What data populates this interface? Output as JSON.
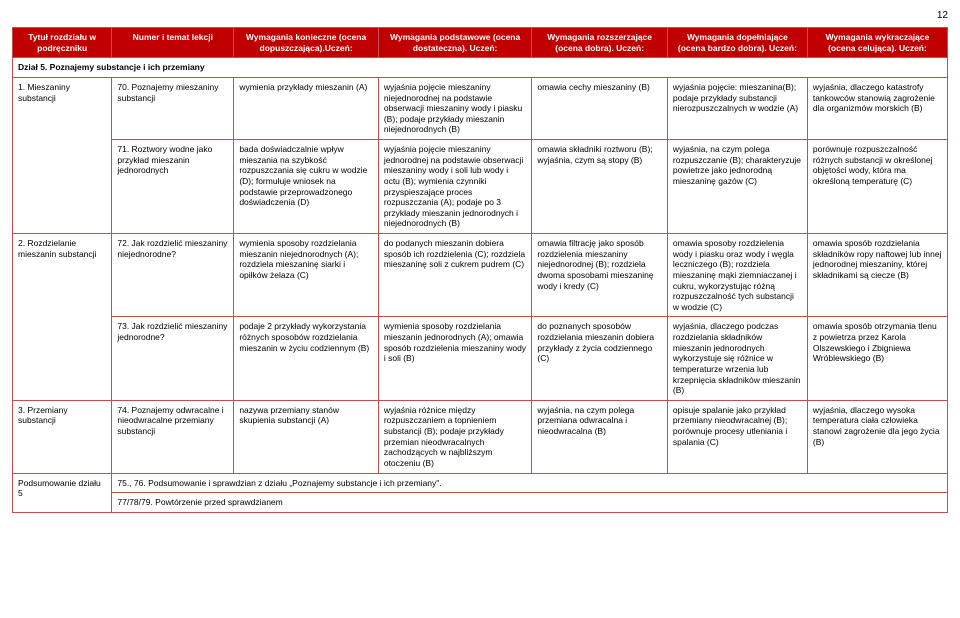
{
  "page_number": "12",
  "headers": [
    "Tytuł rozdziału w podręczniku",
    "Numer i temat lekcji",
    "Wymagania konieczne (ocena dopuszczająca).Uczeń:",
    "Wymagania podstawowe (ocena dostateczna). Uczeń:",
    "Wymagania rozszerzające (ocena dobra). Uczeń:",
    "Wymagania dopełniające (ocena bardzo dobra). Uczeń:",
    "Wymagania wykraczające (ocena celująca). Uczeń:"
  ],
  "section_title": "Dział 5. Poznajemy substancje i ich przemiany",
  "rows": [
    {
      "topic": "1. Mieszaniny substancji",
      "lesson": "70. Poznajemy mieszaniny substancji",
      "c2": "wymienia przykłady mieszanin (A)",
      "c3": "wyjaśnia pojęcie mieszaniny niejednorodnej na podstawie obserwacji mieszaniny wody i piasku (B); podaje przykłady mieszanin niejednorodnych (B)",
      "c4": "omawia cechy mieszaniny (B)",
      "c5": "wyjaśnia pojęcie: mieszanina(B); podaje przykłady substancji nierozpuszczalnych w wodzie (A)",
      "c6": "wyjaśnia, dlaczego katastrofy tankowców stanowią zagrożenie dla organizmów morskich (B)"
    },
    {
      "topic": "",
      "lesson": "71. Roztwory wodne jako przykład mieszanin jednorodnych",
      "c2": "bada doświadczalnie wpływ mieszania na szybkość rozpuszczania się cukru w wodzie (D); formułuje wniosek na podstawie przeprowadzonego doświadczenia (D)",
      "c3": "wyjaśnia pojęcie mieszaniny jednorodnej na podstawie obserwacji mieszaniny wody i soli lub wody i octu (B); wymienia czynniki przyspieszające proces rozpuszczania (A); podaje po 3 przykłady mieszanin jednorodnych i niejednorodnych (B)",
      "c4": "omawia składniki roztworu (B); wyjaśnia, czym są stopy (B)",
      "c5": "wyjaśnia, na czym polega rozpuszczanie (B); charakteryzuje powietrze jako jednorodną mieszaninę gazów (C)",
      "c6": "porównuje rozpuszczalność różnych substancji w określonej objętości wody, która ma określoną temperaturę (C)"
    },
    {
      "topic": "2. Rozdzielanie mieszanin substancji",
      "lesson": "72. Jak rozdzielić mieszaniny niejednorodne?",
      "c2": "wymienia sposoby rozdzielania mieszanin niejednorodnych (A); rozdziela mieszaninę siarki i opiłków żelaza (C)",
      "c3": "do podanych mieszanin dobiera sposób ich rozdzielenia (C); rozdziela mieszaninę soli z cukrem pudrem (C)",
      "c4": "omawia filtrację jako sposób rozdzielenia mieszaniny niejednorodnej (B); rozdziela dwoma sposobami mieszaninę wody i kredy (C)",
      "c5": "omawia sposoby rozdzielenia wody i piasku oraz wody i węgla leczniczego (B); rozdziela mieszaninę mąki ziemniaczanej i cukru, wykorzystując różną rozpuszczalność tych substancji w wodzie (C)",
      "c6": "omawia sposób rozdzielania składników ropy naftowej lub innej jednorodnej mieszaniny, której składnikami są ciecze (B)"
    },
    {
      "topic": "",
      "lesson": "73. Jak rozdzielić mieszaniny jednorodne?",
      "c2": "podaje 2 przykłady wykorzystania różnych sposobów rozdzielania mieszanin w życiu codziennym (B)",
      "c3": "wymienia sposoby rozdzielania mieszanin jednorodnych (A); omawia sposób rozdzielenia mieszaniny wody i soli (B)",
      "c4": "do poznanych sposobów rozdzielania mieszanin dobiera przykłady z życia codziennego (C)",
      "c5": "wyjaśnia, dlaczego podczas rozdzielania składników mieszanin jednorodnych wykorzystuje się różnice w temperaturze wrzenia lub krzepnięcia składników mieszanin (B)",
      "c6": "omawia sposób otrzymania tlenu z powietrza przez Karola Olszewskiego i Zbigniewa Wróblewskiego (B)"
    },
    {
      "topic": "3. Przemiany substancji",
      "lesson": "74. Poznajemy odwracalne i nieodwracalne przemiany substancji",
      "c2": "nazywa przemiany stanów skupienia substancji (A)",
      "c3": "wyjaśnia różnice między rozpuszczaniem a topnieniem substancji (B); podaje przykłady przemian nieodwracalnych zachodzących w najbliższym otoczeniu (B)",
      "c4": "wyjaśnia, na czym polega przemiana odwracalna i nieodwracalna (B)",
      "c5": "opisuje spalanie jako przykład przemiany nieodwracalnej (B); porównuje procesy utleniania i spalania (C)",
      "c6": "wyjaśnia, dlaczego wysoka temperatura ciała człowieka stanowi zagrożenie dla jego życia (B)"
    }
  ],
  "summary_topic": "Podsumowanie działu 5",
  "summary_line1": "75., 76. Podsumowanie i sprawdzian z działu „Poznajemy substancje i ich przemiany\".",
  "summary_line2": "77/78/79. Powtórzenie przed sprawdzianem"
}
